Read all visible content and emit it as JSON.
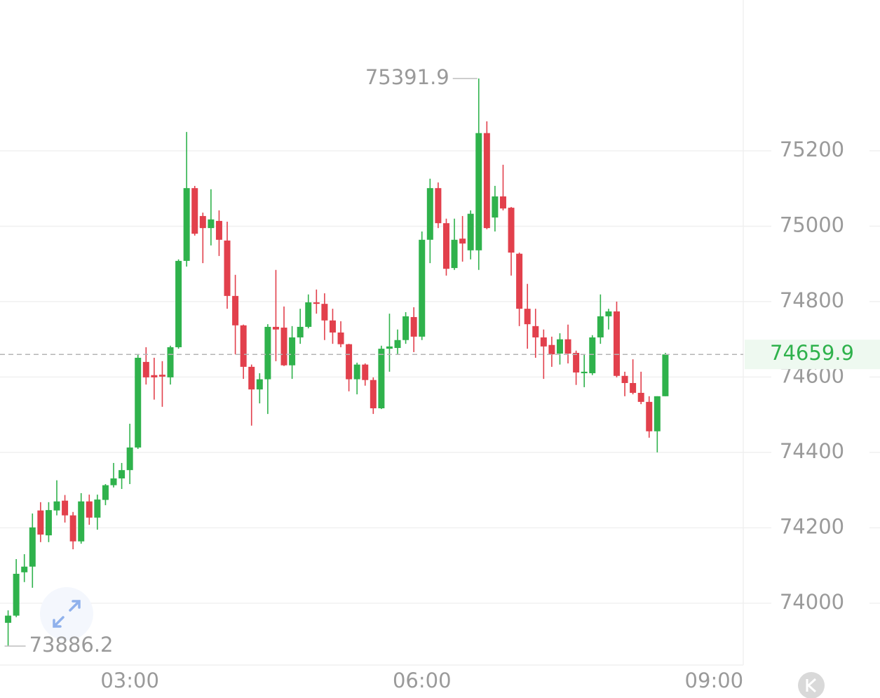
{
  "chart_data": {
    "type": "candlestick",
    "x": [
      "01:45",
      "01:50",
      "01:55",
      "02:00",
      "02:05",
      "02:10",
      "02:15",
      "02:20",
      "02:25",
      "02:30",
      "02:35",
      "02:40",
      "02:45",
      "02:50",
      "02:55",
      "03:00",
      "03:05",
      "03:10",
      "03:15",
      "03:20",
      "03:25",
      "03:30",
      "03:35",
      "03:40",
      "03:45",
      "03:50",
      "03:55",
      "04:00",
      "04:05",
      "04:10",
      "04:15",
      "04:20",
      "04:25",
      "04:30",
      "04:35",
      "04:40",
      "04:45",
      "04:50",
      "04:55",
      "05:00",
      "05:05",
      "05:10",
      "05:15",
      "05:20",
      "05:25",
      "05:30",
      "05:35",
      "05:40",
      "05:45",
      "05:50",
      "05:55",
      "06:00",
      "06:05",
      "06:10",
      "06:15",
      "06:20",
      "06:25",
      "06:30",
      "06:35",
      "06:40",
      "06:45",
      "06:50",
      "06:55",
      "07:00",
      "07:05",
      "07:10",
      "07:15",
      "07:20",
      "07:25",
      "07:30",
      "07:35",
      "07:40",
      "07:45",
      "07:50",
      "07:55",
      "08:00",
      "08:05",
      "08:10",
      "08:15",
      "08:20",
      "08:25",
      "08:30"
    ],
    "open": [
      73948,
      73967,
      74082,
      74097,
      74246,
      74180,
      74246,
      74272,
      74233,
      74164,
      74270,
      74227,
      74274,
      74313,
      74331,
      74353,
      74413,
      74640,
      74605,
      74606,
      74599,
      74679,
      74908,
      75101,
      75027,
      74995,
      75014,
      74962,
      74815,
      74737,
      74627,
      74567,
      74594,
      74733,
      74731,
      74631,
      74705,
      74733,
      74798,
      74794,
      74750,
      74718,
      74687,
      74594,
      74633,
      74592,
      74517,
      74675,
      74677,
      74698,
      74759,
      74707,
      74964,
      75101,
      75008,
      74889,
      74967,
      74936,
      74936,
      75247,
      75023,
      75079,
      75049,
      74927,
      74781,
      74735,
      74705,
      74685,
      74662,
      74700,
      74664,
      74610,
      74610,
      74705,
      74761,
      74774,
      74603,
      74584,
      74558,
      74534,
      74456,
      74549
    ],
    "high": [
      73981,
      74117,
      74130,
      74238,
      74268,
      74268,
      74326,
      74287,
      74242,
      74292,
      74288,
      74288,
      74316,
      74372,
      74372,
      74476,
      74660,
      74679,
      74651,
      74642,
      74683,
      74912,
      75250,
      75107,
      75036,
      75098,
      75042,
      75012,
      74871,
      74739,
      74633,
      74610,
      74740,
      74884,
      74787,
      74735,
      74781,
      74819,
      74832,
      74822,
      74781,
      74748,
      74688,
      74638,
      74636,
      74599,
      74683,
      74768,
      74726,
      74772,
      74785,
      74986,
      75126,
      75116,
      75020,
      75020,
      75027,
      75042,
      75391.9,
      75278,
      75107,
      75163,
      75051,
      74930,
      74847,
      74781,
      74726,
      74707,
      74716,
      74739,
      74670,
      74660,
      74711,
      74819,
      74781,
      74800,
      74614,
      74647,
      74614,
      74549,
      74549,
      74664
    ],
    "low": [
      73886.2,
      73963,
      74056,
      74041,
      74162,
      74162,
      74233,
      74214,
      74143,
      74158,
      74208,
      74195,
      74260,
      74307,
      74303,
      74316,
      74409,
      74580,
      74540,
      74521,
      74580,
      74675,
      74893,
      74975,
      74902,
      74949,
      74921,
      74781,
      74660,
      74595,
      74471,
      74530,
      74502,
      74642,
      74629,
      74595,
      74688,
      74729,
      74768,
      74698,
      74688,
      74679,
      74562,
      74554,
      74577,
      74502,
      74515,
      74614,
      74660,
      74688,
      74666,
      74698,
      74902,
      74995,
      74869,
      74884,
      74906,
      74912,
      74884,
      74992,
      74986,
      75042,
      74869,
      74735,
      74675,
      74651,
      74595,
      74627,
      74633,
      74636,
      74579,
      74573,
      74605,
      74688,
      74726,
      74599,
      74549,
      74554,
      74528,
      74439,
      74400,
      74549
    ],
    "close": [
      73967,
      74078,
      74097,
      74201,
      74182,
      74247,
      74270,
      74233,
      74164,
      74270,
      74227,
      74275,
      74313,
      74331,
      74353,
      74413,
      74651,
      74599,
      74599,
      74601,
      74679,
      74908,
      75101,
      74980,
      74995,
      75018,
      74964,
      74815,
      74737,
      74627,
      74567,
      74594,
      74733,
      74726,
      74631,
      74705,
      74733,
      74798,
      74794,
      74750,
      74718,
      74687,
      74594,
      74633,
      74592,
      74517,
      74675,
      74681,
      74698,
      74761,
      74707,
      74964,
      75101,
      75008,
      74887,
      74964,
      74954,
      75033,
      75247,
      74995,
      75079,
      75047,
      74930,
      74781,
      74740,
      74705,
      74681,
      74660,
      74700,
      74662,
      74612,
      74614,
      74705,
      74761,
      74774,
      74603,
      74584,
      74558,
      74534,
      74456,
      74549,
      74659.9
    ],
    "up_color": "#2fb24c",
    "down_color": "#e2404c",
    "xlim": [
      "01:40",
      "09:18"
    ],
    "xticks": [
      "03:00",
      "06:00",
      "09:00"
    ],
    "ylim": [
      73836,
      75600
    ],
    "yticks": [
      74000,
      74200,
      74400,
      74600,
      74800,
      75000,
      75200
    ],
    "grid": true
  }
}
